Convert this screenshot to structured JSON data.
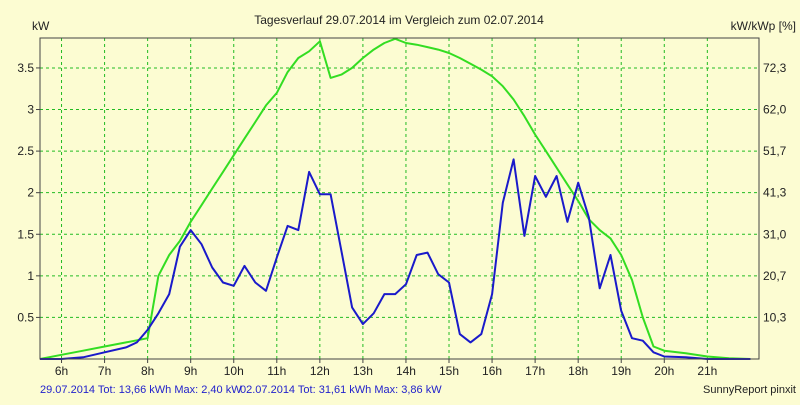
{
  "chart_data": {
    "type": "line",
    "title": "Tagesverlauf 29.07.2014 im Vergleich zum 02.07.2014",
    "ylabel_left": "kW",
    "ylabel_right": "kW/kWp [%]",
    "x_ticks": [
      "6h",
      "7h",
      "8h",
      "9h",
      "10h",
      "11h",
      "12h",
      "13h",
      "14h",
      "15h",
      "16h",
      "17h",
      "18h",
      "19h",
      "20h",
      "21h"
    ],
    "xlim": [
      5.5,
      22.2
    ],
    "ylim": [
      0,
      3.86
    ],
    "y_ticks": [
      "0.5",
      "1",
      "1.5",
      "2",
      "2.5",
      "3",
      "3.5"
    ],
    "y_right_ticks": [
      "10,3",
      "20,7",
      "31,0",
      "41,3",
      "51,7",
      "62,0",
      "72,3"
    ],
    "grid": true,
    "colors": {
      "background": "#fcfcd2",
      "grid": "#22bb22",
      "series_blue": "#1a1aca",
      "series_green": "#33dd22",
      "footer_blue": "#2222cc",
      "text": "#222222"
    },
    "series": [
      {
        "name": "29.07.2014",
        "color": "#1a1aca",
        "x": [
          5.5,
          6.0,
          6.5,
          7.0,
          7.5,
          7.75,
          8.0,
          8.25,
          8.5,
          8.75,
          9.0,
          9.25,
          9.5,
          9.75,
          10.0,
          10.25,
          10.5,
          10.75,
          11.0,
          11.25,
          11.5,
          11.75,
          12.0,
          12.25,
          12.5,
          12.75,
          13.0,
          13.25,
          13.5,
          13.75,
          14.0,
          14.25,
          14.5,
          14.75,
          15.0,
          15.25,
          15.5,
          15.75,
          16.0,
          16.25,
          16.5,
          16.75,
          17.0,
          17.25,
          17.5,
          17.75,
          18.0,
          18.25,
          18.5,
          18.75,
          19.0,
          19.25,
          19.5,
          19.75,
          20.0,
          20.5,
          21.0,
          21.5,
          22.0
        ],
        "values": [
          0.0,
          0.0,
          0.02,
          0.08,
          0.14,
          0.2,
          0.35,
          0.55,
          0.78,
          1.35,
          1.55,
          1.38,
          1.1,
          0.92,
          0.88,
          1.12,
          0.92,
          0.82,
          1.22,
          1.6,
          1.55,
          2.25,
          1.98,
          1.98,
          1.3,
          0.62,
          0.42,
          0.55,
          0.78,
          0.78,
          0.9,
          1.25,
          1.28,
          1.02,
          0.92,
          0.3,
          0.2,
          0.3,
          0.78,
          1.88,
          2.4,
          1.48,
          2.2,
          1.95,
          2.2,
          1.65,
          2.12,
          1.7,
          0.85,
          1.25,
          0.58,
          0.25,
          0.22,
          0.08,
          0.03,
          0.02,
          0.0,
          0.0,
          0.0
        ]
      },
      {
        "name": "02.07.2014",
        "color": "#33dd22",
        "x": [
          5.5,
          6.0,
          6.5,
          7.0,
          7.5,
          8.0,
          8.25,
          8.5,
          8.75,
          9.0,
          9.25,
          9.5,
          9.75,
          10.0,
          10.25,
          10.5,
          10.75,
          11.0,
          11.25,
          11.5,
          11.75,
          12.0,
          12.25,
          12.5,
          12.75,
          13.0,
          13.25,
          13.5,
          13.75,
          14.0,
          14.25,
          14.5,
          14.75,
          15.0,
          15.25,
          15.5,
          15.75,
          16.0,
          16.25,
          16.5,
          16.75,
          17.0,
          17.25,
          17.5,
          17.75,
          18.0,
          18.25,
          18.5,
          18.75,
          19.0,
          19.25,
          19.5,
          19.75,
          20.0,
          20.5,
          21.0,
          21.5,
          22.0
        ],
        "values": [
          0.0,
          0.05,
          0.1,
          0.15,
          0.2,
          0.25,
          1.0,
          1.25,
          1.42,
          1.65,
          1.85,
          2.05,
          2.25,
          2.45,
          2.65,
          2.85,
          3.05,
          3.2,
          3.45,
          3.62,
          3.7,
          3.82,
          3.38,
          3.42,
          3.5,
          3.62,
          3.72,
          3.8,
          3.85,
          3.8,
          3.78,
          3.75,
          3.72,
          3.68,
          3.62,
          3.55,
          3.48,
          3.4,
          3.28,
          3.12,
          2.92,
          2.7,
          2.5,
          2.3,
          2.1,
          1.9,
          1.68,
          1.55,
          1.45,
          1.25,
          0.95,
          0.5,
          0.15,
          0.1,
          0.07,
          0.03,
          0.01,
          0.0
        ]
      }
    ],
    "footer": {
      "series1": "29.07.2014 Tot: 13,66 kWh Max: 2,40 kW",
      "series2": "02.07.2014 Tot: 31,61 kWh Max: 3,86 kW",
      "brand": "SunnyReport pinxit"
    }
  }
}
